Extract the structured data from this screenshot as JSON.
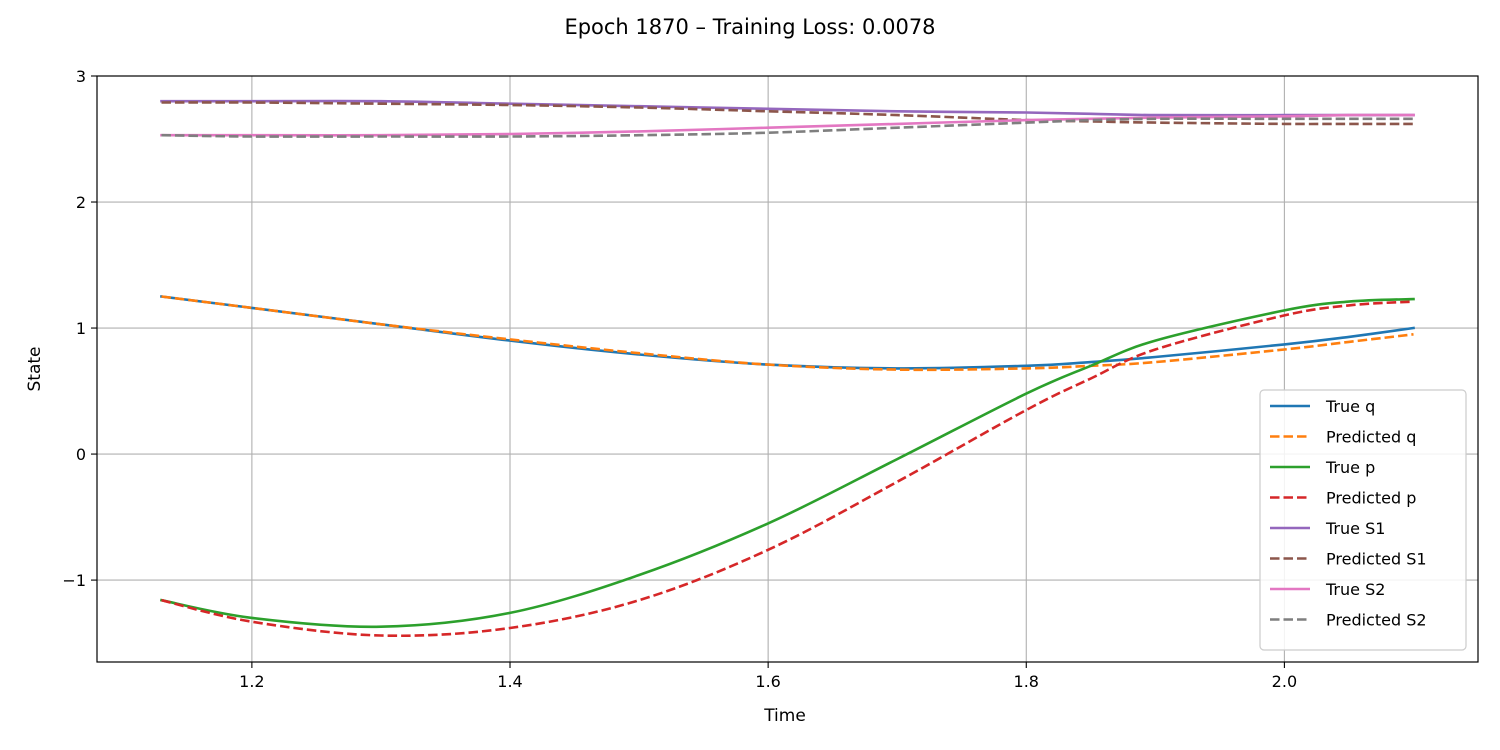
{
  "chart_data": {
    "type": "line",
    "title": "Epoch 1870 – Training Loss: 0.0078",
    "xlabel": "Time",
    "ylabel": "State",
    "xlim": [
      1.08,
      2.15
    ],
    "ylim": [
      -1.65,
      3.0
    ],
    "xticks": [
      1.2,
      1.4,
      1.6,
      1.8,
      2.0
    ],
    "xtick_labels": [
      "1.2",
      "1.4",
      "1.6",
      "1.8",
      "2.0"
    ],
    "yticks": [
      -1,
      0,
      1,
      2,
      3
    ],
    "ytick_labels": [
      "−1",
      "0",
      "1",
      "2",
      "3"
    ],
    "grid": true,
    "legend_position": "lower-right",
    "x": [
      1.13,
      1.2,
      1.3,
      1.4,
      1.5,
      1.6,
      1.7,
      1.8,
      1.85,
      1.9,
      2.0,
      2.05,
      2.1
    ],
    "series": [
      {
        "name": "True q",
        "color": "#1f77b4",
        "dashed": false,
        "values": [
          1.25,
          1.16,
          1.03,
          0.9,
          0.79,
          0.71,
          0.68,
          0.7,
          0.73,
          0.77,
          0.87,
          0.93,
          1.0
        ]
      },
      {
        "name": "Predicted q",
        "color": "#ff7f0e",
        "dashed": true,
        "values": [
          1.25,
          1.16,
          1.03,
          0.91,
          0.8,
          0.71,
          0.67,
          0.68,
          0.7,
          0.73,
          0.83,
          0.89,
          0.95
        ]
      },
      {
        "name": "True p",
        "color": "#2ca02c",
        "dashed": false,
        "values": [
          -1.16,
          -1.3,
          -1.37,
          -1.26,
          -0.96,
          -0.55,
          -0.04,
          0.48,
          0.7,
          0.9,
          1.14,
          1.21,
          1.23
        ]
      },
      {
        "name": "Predicted p",
        "color": "#d62728",
        "dashed": true,
        "values": [
          -1.16,
          -1.33,
          -1.44,
          -1.38,
          -1.16,
          -0.76,
          -0.22,
          0.35,
          0.6,
          0.83,
          1.1,
          1.18,
          1.21
        ]
      },
      {
        "name": "True S1",
        "color": "#9467bd",
        "dashed": false,
        "values": [
          2.8,
          2.8,
          2.8,
          2.78,
          2.76,
          2.74,
          2.72,
          2.71,
          2.7,
          2.69,
          2.69,
          2.69,
          2.69
        ]
      },
      {
        "name": "Predicted S1",
        "color": "#8c564b",
        "dashed": true,
        "values": [
          2.79,
          2.79,
          2.78,
          2.77,
          2.75,
          2.72,
          2.69,
          2.65,
          2.64,
          2.63,
          2.62,
          2.62,
          2.62
        ]
      },
      {
        "name": "True S2",
        "color": "#e377c2",
        "dashed": false,
        "values": [
          2.53,
          2.53,
          2.53,
          2.54,
          2.56,
          2.59,
          2.62,
          2.65,
          2.66,
          2.67,
          2.68,
          2.69,
          2.69
        ]
      },
      {
        "name": "Predicted S2",
        "color": "#7f7f7f",
        "dashed": true,
        "values": [
          2.53,
          2.52,
          2.52,
          2.52,
          2.53,
          2.55,
          2.59,
          2.63,
          2.65,
          2.66,
          2.66,
          2.66,
          2.66
        ]
      }
    ]
  }
}
